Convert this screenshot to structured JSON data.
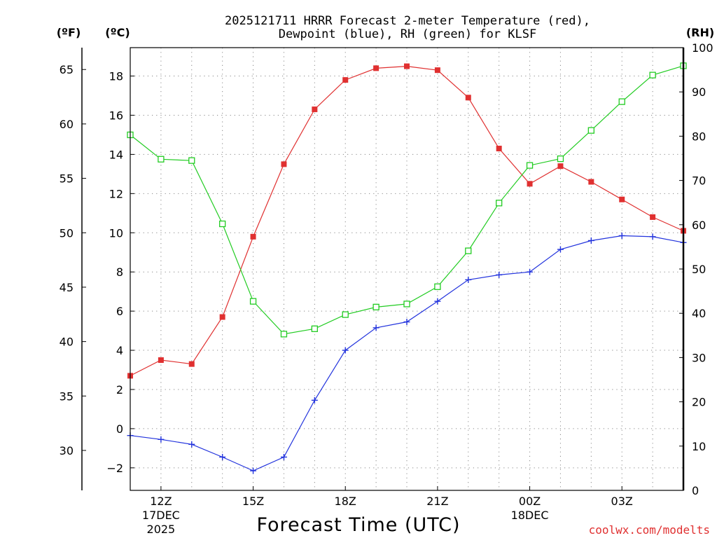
{
  "chart_data": {
    "type": "line",
    "title_line1": "2025121711 HRRR Forecast 2-meter Temperature (red),",
    "title_line2": "Dewpoint (blue), RH (green) for KLSF",
    "xlabel": "Forecast Time (UTC)",
    "credit": "coolwx.com/modelts",
    "left_outer_unit": "(ºF)",
    "left_inner_unit": "(ºC)",
    "right_unit": "(RH)",
    "x_range": [
      11,
      29
    ],
    "celsius_range": [
      -3.15,
      19.45
    ],
    "rh_range": [
      0,
      100
    ],
    "celsius_ticks": [
      -2,
      0,
      2,
      4,
      6,
      8,
      10,
      12,
      14,
      16,
      18
    ],
    "celsius_tick_labels": [
      "−2",
      "0",
      "2",
      "4",
      "6",
      "8",
      "10",
      "12",
      "14",
      "16",
      "18"
    ],
    "fahrenheit_ticks": [
      30,
      35,
      40,
      45,
      50,
      55,
      60,
      65
    ],
    "fahrenheit_tick_labels": [
      "30",
      "35",
      "40",
      "45",
      "50",
      "55",
      "60",
      "65"
    ],
    "rh_ticks": [
      0,
      10,
      20,
      30,
      40,
      50,
      60,
      70,
      80,
      90,
      100
    ],
    "rh_tick_labels": [
      "0",
      "10",
      "20",
      "30",
      "40",
      "50",
      "60",
      "70",
      "80",
      "90",
      "100"
    ],
    "x_ticks": [
      {
        "x": 12,
        "lines": [
          "12Z",
          "17DEC",
          "2025"
        ]
      },
      {
        "x": 15,
        "lines": [
          "15Z"
        ]
      },
      {
        "x": 18,
        "lines": [
          "18Z"
        ]
      },
      {
        "x": 21,
        "lines": [
          "21Z"
        ]
      },
      {
        "x": 24,
        "lines": [
          "00Z",
          "18DEC"
        ]
      },
      {
        "x": 27,
        "lines": [
          "03Z"
        ]
      }
    ],
    "x": [
      11,
      12,
      13,
      14,
      15,
      16,
      17,
      18,
      19,
      20,
      21,
      22,
      23,
      24,
      25,
      26,
      27,
      28,
      29
    ],
    "series": [
      {
        "name": "2-meter Temperature",
        "unit": "C",
        "color": "#e03030",
        "marker": "filled-square",
        "values": [
          2.7,
          3.5,
          3.3,
          5.7,
          9.8,
          13.5,
          16.3,
          17.8,
          18.4,
          18.5,
          18.3,
          16.9,
          14.3,
          12.5,
          13.4,
          12.6,
          11.7,
          10.8,
          10.1
        ]
      },
      {
        "name": "Dewpoint",
        "unit": "C",
        "color": "#2233dd",
        "marker": "plus",
        "values": [
          -0.35,
          -0.55,
          -0.8,
          -1.45,
          -2.15,
          -1.45,
          1.45,
          4.0,
          5.15,
          5.45,
          6.5,
          7.6,
          7.85,
          8.0,
          9.15,
          9.6,
          9.85,
          9.8,
          9.5
        ]
      },
      {
        "name": "Relative Humidity",
        "unit": "%",
        "color": "#22cc22",
        "marker": "open-square",
        "values": [
          80.3,
          74.8,
          74.5,
          60.2,
          42.7,
          35.3,
          36.5,
          39.7,
          41.4,
          42.1,
          46.0,
          54.1,
          64.9,
          73.4,
          74.9,
          81.3,
          87.8,
          93.8,
          95.9
        ]
      }
    ]
  }
}
